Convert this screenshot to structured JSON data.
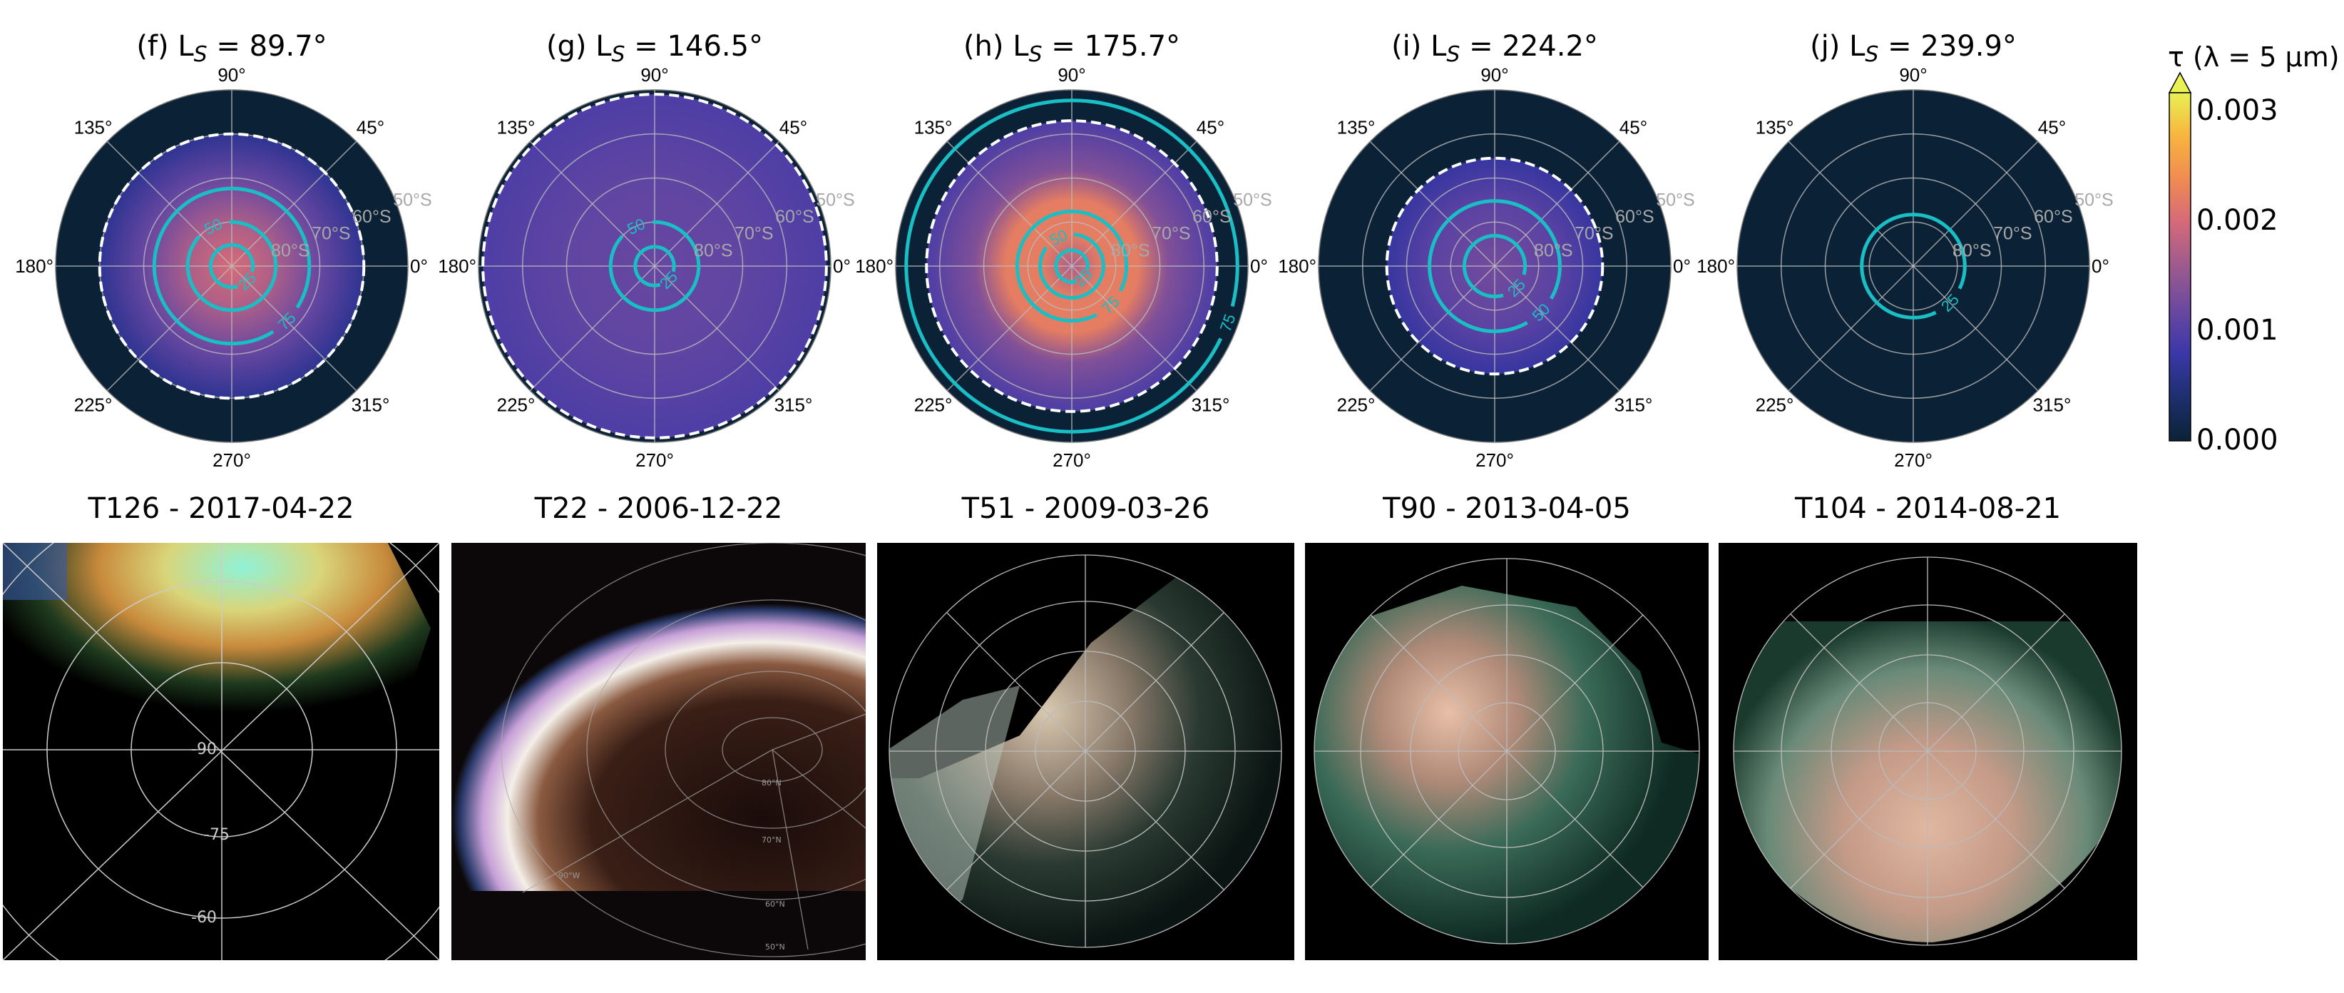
{
  "chart_data": {
    "type": "polar-heatmap",
    "colorbar": {
      "label": "τ (λ = 5 μm)",
      "range": [
        0.0,
        0.003
      ],
      "ticks": [
        "0.000",
        "0.001",
        "0.002",
        "0.003"
      ],
      "extend": "max",
      "colors": [
        "#0b2236",
        "#1d2f6e",
        "#3a37a8",
        "#6a48a0",
        "#9c5a8e",
        "#d4697a",
        "#f08a52",
        "#f7b43e",
        "#e9f154"
      ]
    },
    "longitude_ticks": [
      "90°",
      "135°",
      "45°",
      "180°",
      "0°",
      "225°",
      "270°",
      "315°"
    ],
    "latitude_ticks": [
      "80°S",
      "70°S",
      "60°S",
      "50°S"
    ],
    "latitude_range": [
      -90,
      -50
    ],
    "grid": true,
    "contour_color": "#19bfc4",
    "boundary_style": "white dashed",
    "panels": [
      {
        "title_prefix": "(f) L",
        "title_sub": "S",
        "title_suffix": " = 89.7°",
        "profile": [
          [
            90,
            0.0019
          ],
          [
            80,
            0.0016
          ],
          [
            70,
            0.0011
          ],
          [
            60,
            0.0006
          ]
        ],
        "boundary_lat": 60,
        "contours": [
          {
            "level": "25",
            "lat": 85.2
          },
          {
            "level": "50",
            "lat": 80
          },
          {
            "level": "75",
            "lat": 72.4
          }
        ]
      },
      {
        "title_prefix": "(g) L",
        "title_sub": "S",
        "title_suffix": " = 146.5°",
        "profile": [
          [
            90,
            0.0011
          ],
          [
            70,
            0.00105
          ],
          [
            51,
            0.0009
          ]
        ],
        "boundary_lat": 51,
        "contours": [
          {
            "level": "25",
            "lat": 85.6
          },
          {
            "level": "50",
            "lat": 80
          }
        ]
      },
      {
        "title_prefix": "(h) L",
        "title_sub": "S",
        "title_suffix": " = 175.7°",
        "profile": [
          [
            90,
            0.0016
          ],
          [
            83,
            0.0021
          ],
          [
            75,
            0.0021
          ],
          [
            68,
            0.0013
          ],
          [
            57,
            0.0009
          ]
        ],
        "boundary_lat": 57,
        "contours": [
          {
            "level": "25",
            "lat": 86.4
          },
          {
            "level": "50",
            "lat": 82.8
          },
          {
            "level": "75",
            "lat": 77.6
          },
          {
            "level": "75",
            "lat": 52.4
          }
        ]
      },
      {
        "title_prefix": "(i) L",
        "title_sub": "S",
        "title_suffix": " = 224.2°",
        "profile": [
          [
            90,
            0.0012
          ],
          [
            75,
            0.001
          ],
          [
            65.5,
            0.0007
          ]
        ],
        "boundary_lat": 65.5,
        "contours": [
          {
            "level": "25",
            "lat": 83.1
          },
          {
            "level": "50",
            "lat": 75.2
          }
        ]
      },
      {
        "title_prefix": "(j) L",
        "title_sub": "S",
        "title_suffix": " = 239.9°",
        "profile": [],
        "boundary_lat": null,
        "contours": [
          {
            "level": "25",
            "lat": 78.3
          }
        ]
      }
    ]
  },
  "images": [
    {
      "title": "T126 - 2017-04-22",
      "grid_labels": [
        "-90",
        "-75",
        "-60"
      ]
    },
    {
      "title": "T22 - 2006-12-22",
      "grid_labels": [
        "80°N",
        "70°N",
        "60°N",
        "50°N",
        "90°W"
      ]
    },
    {
      "title": "T51 - 2009-03-26",
      "grid_labels": []
    },
    {
      "title": "T90 - 2013-04-05",
      "grid_labels": []
    },
    {
      "title": "T104 - 2014-08-21",
      "grid_labels": []
    }
  ]
}
